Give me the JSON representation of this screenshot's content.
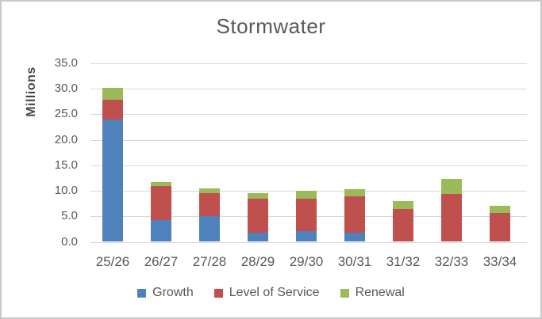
{
  "chart": {
    "title": "Stormwater",
    "y_axis_title": "Millions"
  },
  "chart_data": {
    "type": "bar",
    "stacked": true,
    "title": "Stormwater",
    "xlabel": "",
    "ylabel": "Millions",
    "categories": [
      "25/26",
      "26/27",
      "27/28",
      "28/29",
      "29/30",
      "30/31",
      "31/32",
      "32/33",
      "33/34"
    ],
    "series": [
      {
        "name": "Growth",
        "color": "#4F81BD",
        "values": [
          24.0,
          4.3,
          5.0,
          1.8,
          2.1,
          1.8,
          0.0,
          0.0,
          0.0
        ]
      },
      {
        "name": "Level of Service",
        "color": "#C0504D",
        "values": [
          3.8,
          6.6,
          4.6,
          6.6,
          6.4,
          7.1,
          6.4,
          9.4,
          5.6
        ]
      },
      {
        "name": "Renewal",
        "color": "#9BBB59",
        "values": [
          2.4,
          0.8,
          0.9,
          1.2,
          1.5,
          1.4,
          1.6,
          3.0,
          1.4
        ]
      }
    ],
    "ylim": [
      0,
      35
    ],
    "ytick_step": 5,
    "ytick_labels": [
      "0.0",
      "5.0",
      "10.0",
      "15.0",
      "20.0",
      "25.0",
      "30.0",
      "35.0"
    ],
    "grid": true,
    "legend_position": "bottom",
    "grid_color": "#D9D9D9",
    "text_color": "#595959"
  }
}
